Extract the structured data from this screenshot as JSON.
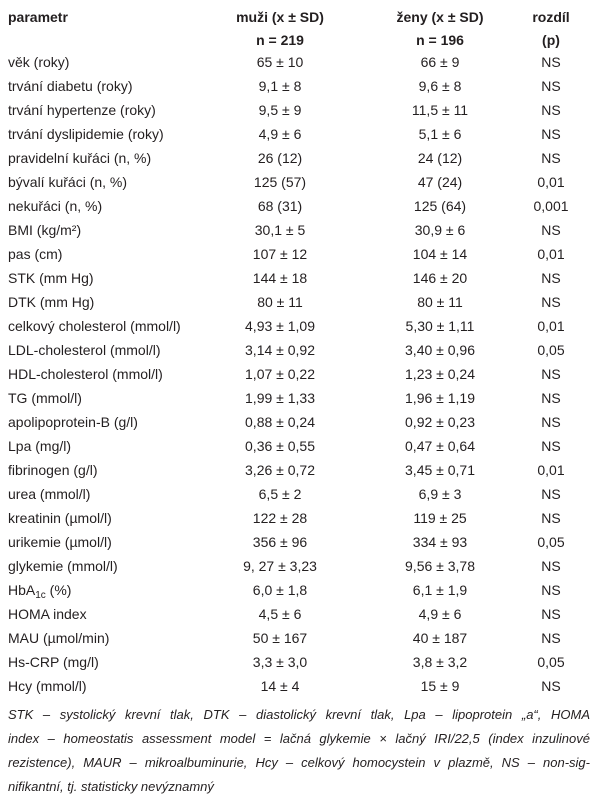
{
  "table": {
    "header": [
      "parametr",
      [
        "muži (x ± SD)",
        "n = 219"
      ],
      [
        "ženy (x ± SD)",
        "n = 196"
      ],
      [
        "rozdíl",
        "(p)"
      ]
    ],
    "rows": [
      [
        "věk (roky)",
        "65 ± 10",
        "66 ± 9",
        "NS"
      ],
      [
        "trvání diabetu (roky)",
        "9,1 ± 8",
        "9,6 ± 8",
        "NS"
      ],
      [
        "trvání hypertenze (roky)",
        "9,5 ± 9",
        "11,5 ± 11",
        "NS"
      ],
      [
        "trvání dyslipidemie (roky)",
        "4,9 ± 6",
        "5,1 ± 6",
        "NS"
      ],
      [
        "pravidelní kuřáci (n, %)",
        "26 (12)",
        "24 (12)",
        "NS"
      ],
      [
        "bývalí kuřáci (n, %)",
        "125 (57)",
        "47 (24)",
        "0,01"
      ],
      [
        "nekuřáci (n, %)",
        "68 (31)",
        "125 (64)",
        "0,001"
      ],
      [
        "BMI (kg/m²)",
        "30,1 ± 5",
        "30,9 ± 6",
        "NS"
      ],
      [
        "pas (cm)",
        "107 ± 12",
        "104 ± 14",
        "0,01"
      ],
      [
        "STK (mm Hg)",
        "144 ± 18",
        "146 ± 20",
        "NS"
      ],
      [
        "DTK (mm Hg)",
        "80 ± 11",
        "80 ± 11",
        "NS"
      ],
      [
        "celkový cholesterol (mmol/l)",
        "4,93 ± 1,09",
        "5,30 ± 1,11",
        "0,01"
      ],
      [
        "LDL-cholesterol (mmol/l)",
        "3,14 ± 0,92",
        "3,40 ± 0,96",
        "0,05"
      ],
      [
        "HDL-cholesterol (mmol/l)",
        "1,07 ± 0,22",
        "1,23 ± 0,24",
        "NS"
      ],
      [
        "TG (mmol/l)",
        "1,99 ± 1,33",
        "1,96 ± 1,19",
        "NS"
      ],
      [
        "apolipoprotein-B (g/l)",
        "0,88 ± 0,24",
        "0,92 ± 0,23",
        "NS"
      ],
      [
        "Lpa (mg/l)",
        "0,36 ± 0,55",
        "0,47 ± 0,64",
        "NS"
      ],
      [
        "fibrinogen (g/l)",
        "3,26 ± 0,72",
        "3,45 ± 0,71",
        "0,01"
      ],
      [
        "urea (mmol/l)",
        "6,5 ± 2",
        "6,9 ± 3",
        "NS"
      ],
      [
        "kreatinin (µmol/l)",
        "122 ± 28",
        "119 ± 25",
        "NS"
      ],
      [
        "urikemie (µmol/l)",
        "356 ± 96",
        "334 ± 93",
        "0,05"
      ],
      [
        "glykemie (mmol/l)",
        "9, 27 ± 3,23",
        "9,56 ± 3,78",
        "NS"
      ],
      [
        [
          "HbA",
          "1c",
          " (%)"
        ],
        "6,0 ± 1,8",
        "6,1 ± 1,9",
        "NS"
      ],
      [
        "HOMA index",
        "4,5 ± 6",
        "4,9 ± 6",
        "NS"
      ],
      [
        "MAU (µmol/min)",
        "50 ± 167",
        "40 ± 187",
        "NS"
      ],
      [
        "Hs-CRP (mg/l)",
        "3,3 ± 3,0",
        "3,8 ± 3,2",
        "0,05"
      ],
      [
        "Hcy (mmol/l)",
        "14 ± 4",
        "15 ± 9",
        "NS"
      ]
    ]
  },
  "footnote": [
    "STK – systolický krevní tlak, DTK – diastolický krevní tlak, Lpa – lipoprotein „a“, HOMA",
    "index – homeostatis assessment model = lačná glykemie × lačný IRI/22,5 (index inzulinové",
    "rezistence), MAUR – mikroalbuminurie, Hcy – celkový homocystein v plazmě, NS – non-sig-",
    "nifikantní, tj. statisticky nevýznamný"
  ]
}
